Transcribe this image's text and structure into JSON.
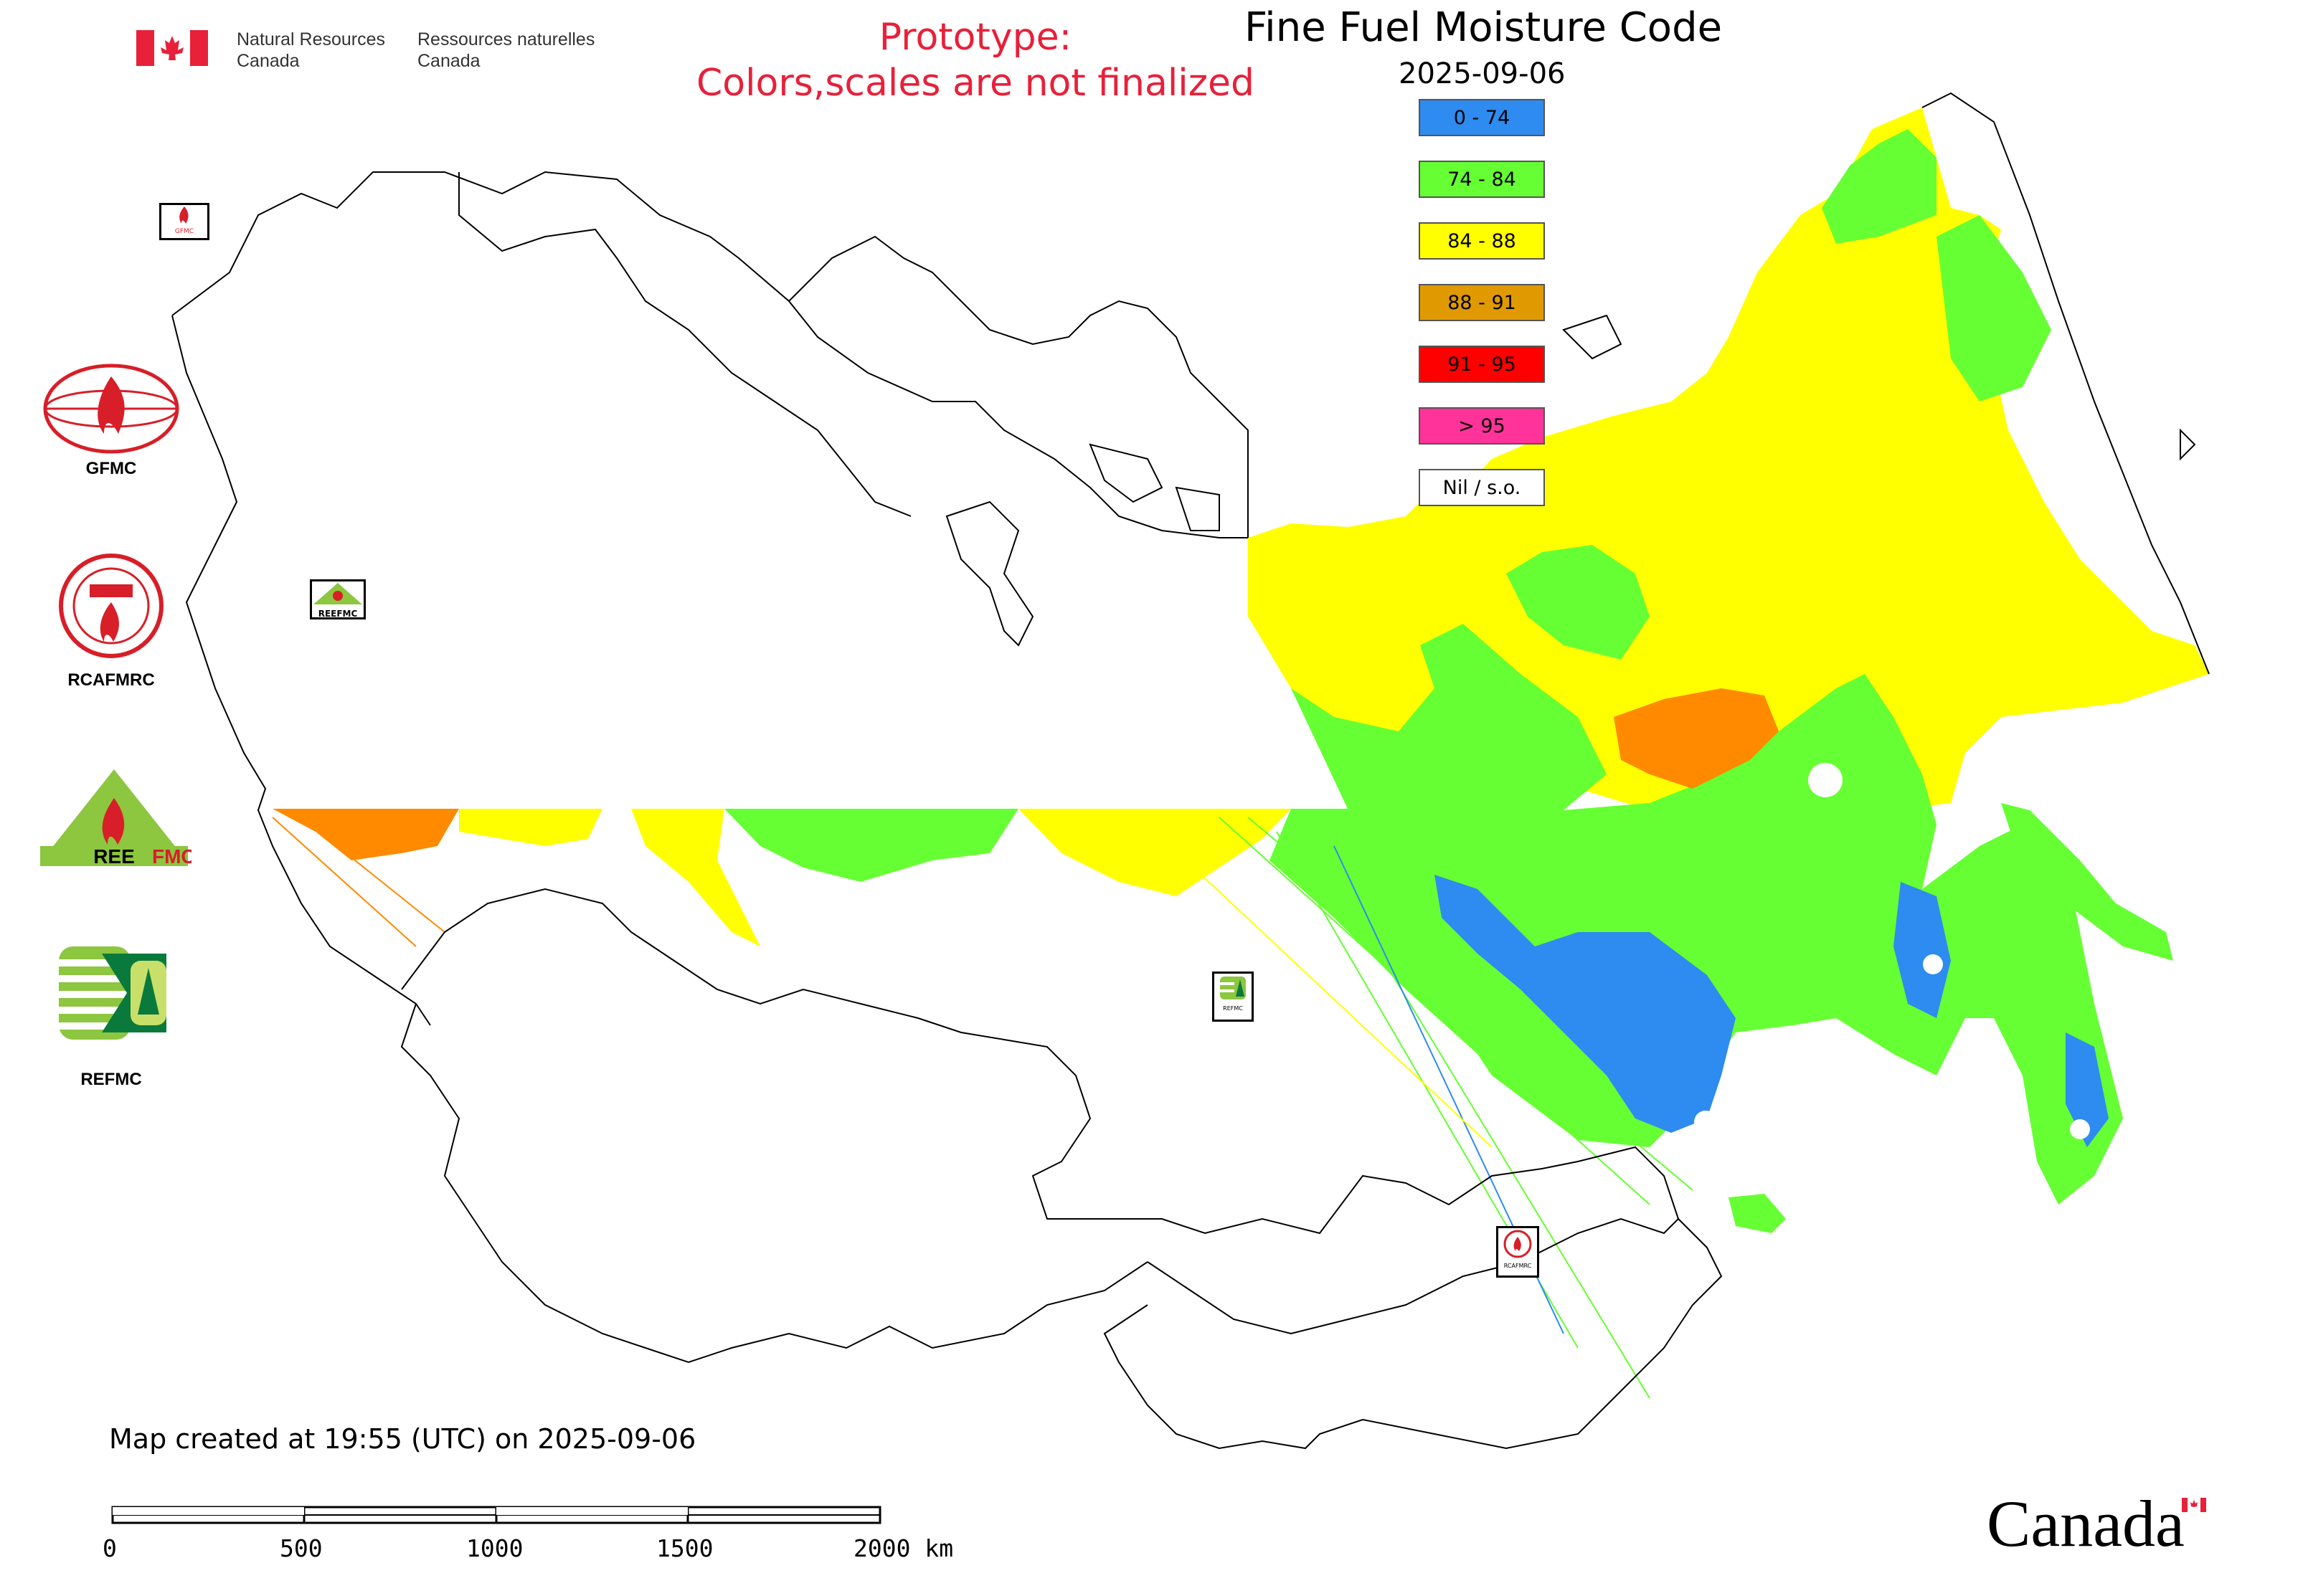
{
  "header": {
    "gov_en_line1": "Natural Resources",
    "gov_en_line2": "Canada",
    "gov_fr_line1": "Ressources naturelles",
    "gov_fr_line2": "Canada",
    "prototype_line1": "Prototype:",
    "prototype_line2": "Colors,scales are not finalized",
    "map_title": "Fine Fuel Moisture Code",
    "map_date": "2025-09-06"
  },
  "legend": [
    {
      "label": "0 - 74",
      "color": "#2e8bf0"
    },
    {
      "label": "74 - 84",
      "color": "#66ff33"
    },
    {
      "label": "84 - 88",
      "color": "#ffff00"
    },
    {
      "label": "88 - 91",
      "color": "#e09a00"
    },
    {
      "label": "91 - 95",
      "color": "#ff0000"
    },
    {
      "label": "> 95",
      "color": "#ff3399"
    },
    {
      "label": "Nil / s.o.",
      "color": "#ffffff"
    }
  ],
  "logos": [
    {
      "label": "GFMC",
      "icon": "gfmc-logo-icon"
    },
    {
      "label": "RCAFMRC",
      "icon": "rcafmrc-logo-icon"
    },
    {
      "label": "REEFMC",
      "icon": "reefmc-logo-icon"
    },
    {
      "label": "REFMC",
      "icon": "refmc-logo-icon"
    }
  ],
  "map_markers": {
    "gfmc": "GFMC",
    "reefmc": "REEFMC",
    "refmc": "REFMC",
    "rcafmrc": "RCAFMRC"
  },
  "footer": {
    "created": "Map created at 19:55 (UTC) on 2025-09-06",
    "scale_labels": [
      "0",
      "500",
      "1000",
      "1500",
      "2000 km"
    ],
    "wordmark": "Canada"
  }
}
